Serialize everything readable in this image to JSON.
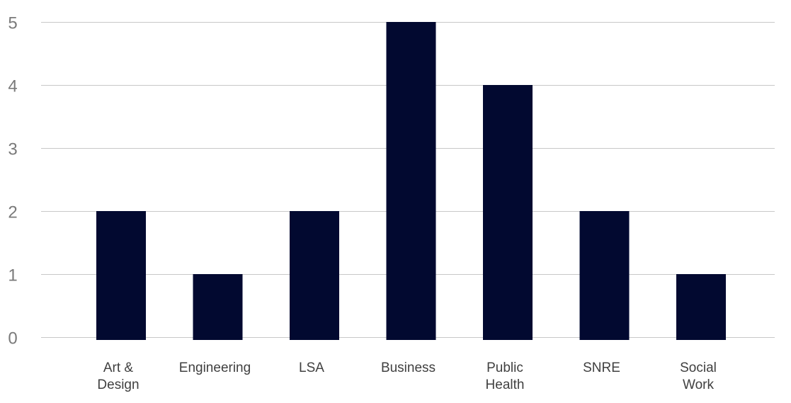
{
  "chart_data": {
    "type": "bar",
    "categories": [
      [
        "Art &",
        "Design"
      ],
      [
        "Engineering"
      ],
      [
        "LSA"
      ],
      [
        "Business"
      ],
      [
        "Public",
        "Health"
      ],
      [
        "SNRE"
      ],
      [
        "Social",
        "Work"
      ]
    ],
    "values": [
      2,
      1,
      2,
      5,
      4,
      2,
      1
    ],
    "ylim": [
      0,
      5
    ],
    "yticks": [
      0,
      1,
      2,
      3,
      4,
      5
    ],
    "grid": true,
    "legend": "none",
    "colors": {
      "bar": "#020930",
      "grid": "#c8c8c8",
      "y_tick_text": "#7a7a7a",
      "x_tick_text": "#404040"
    }
  }
}
